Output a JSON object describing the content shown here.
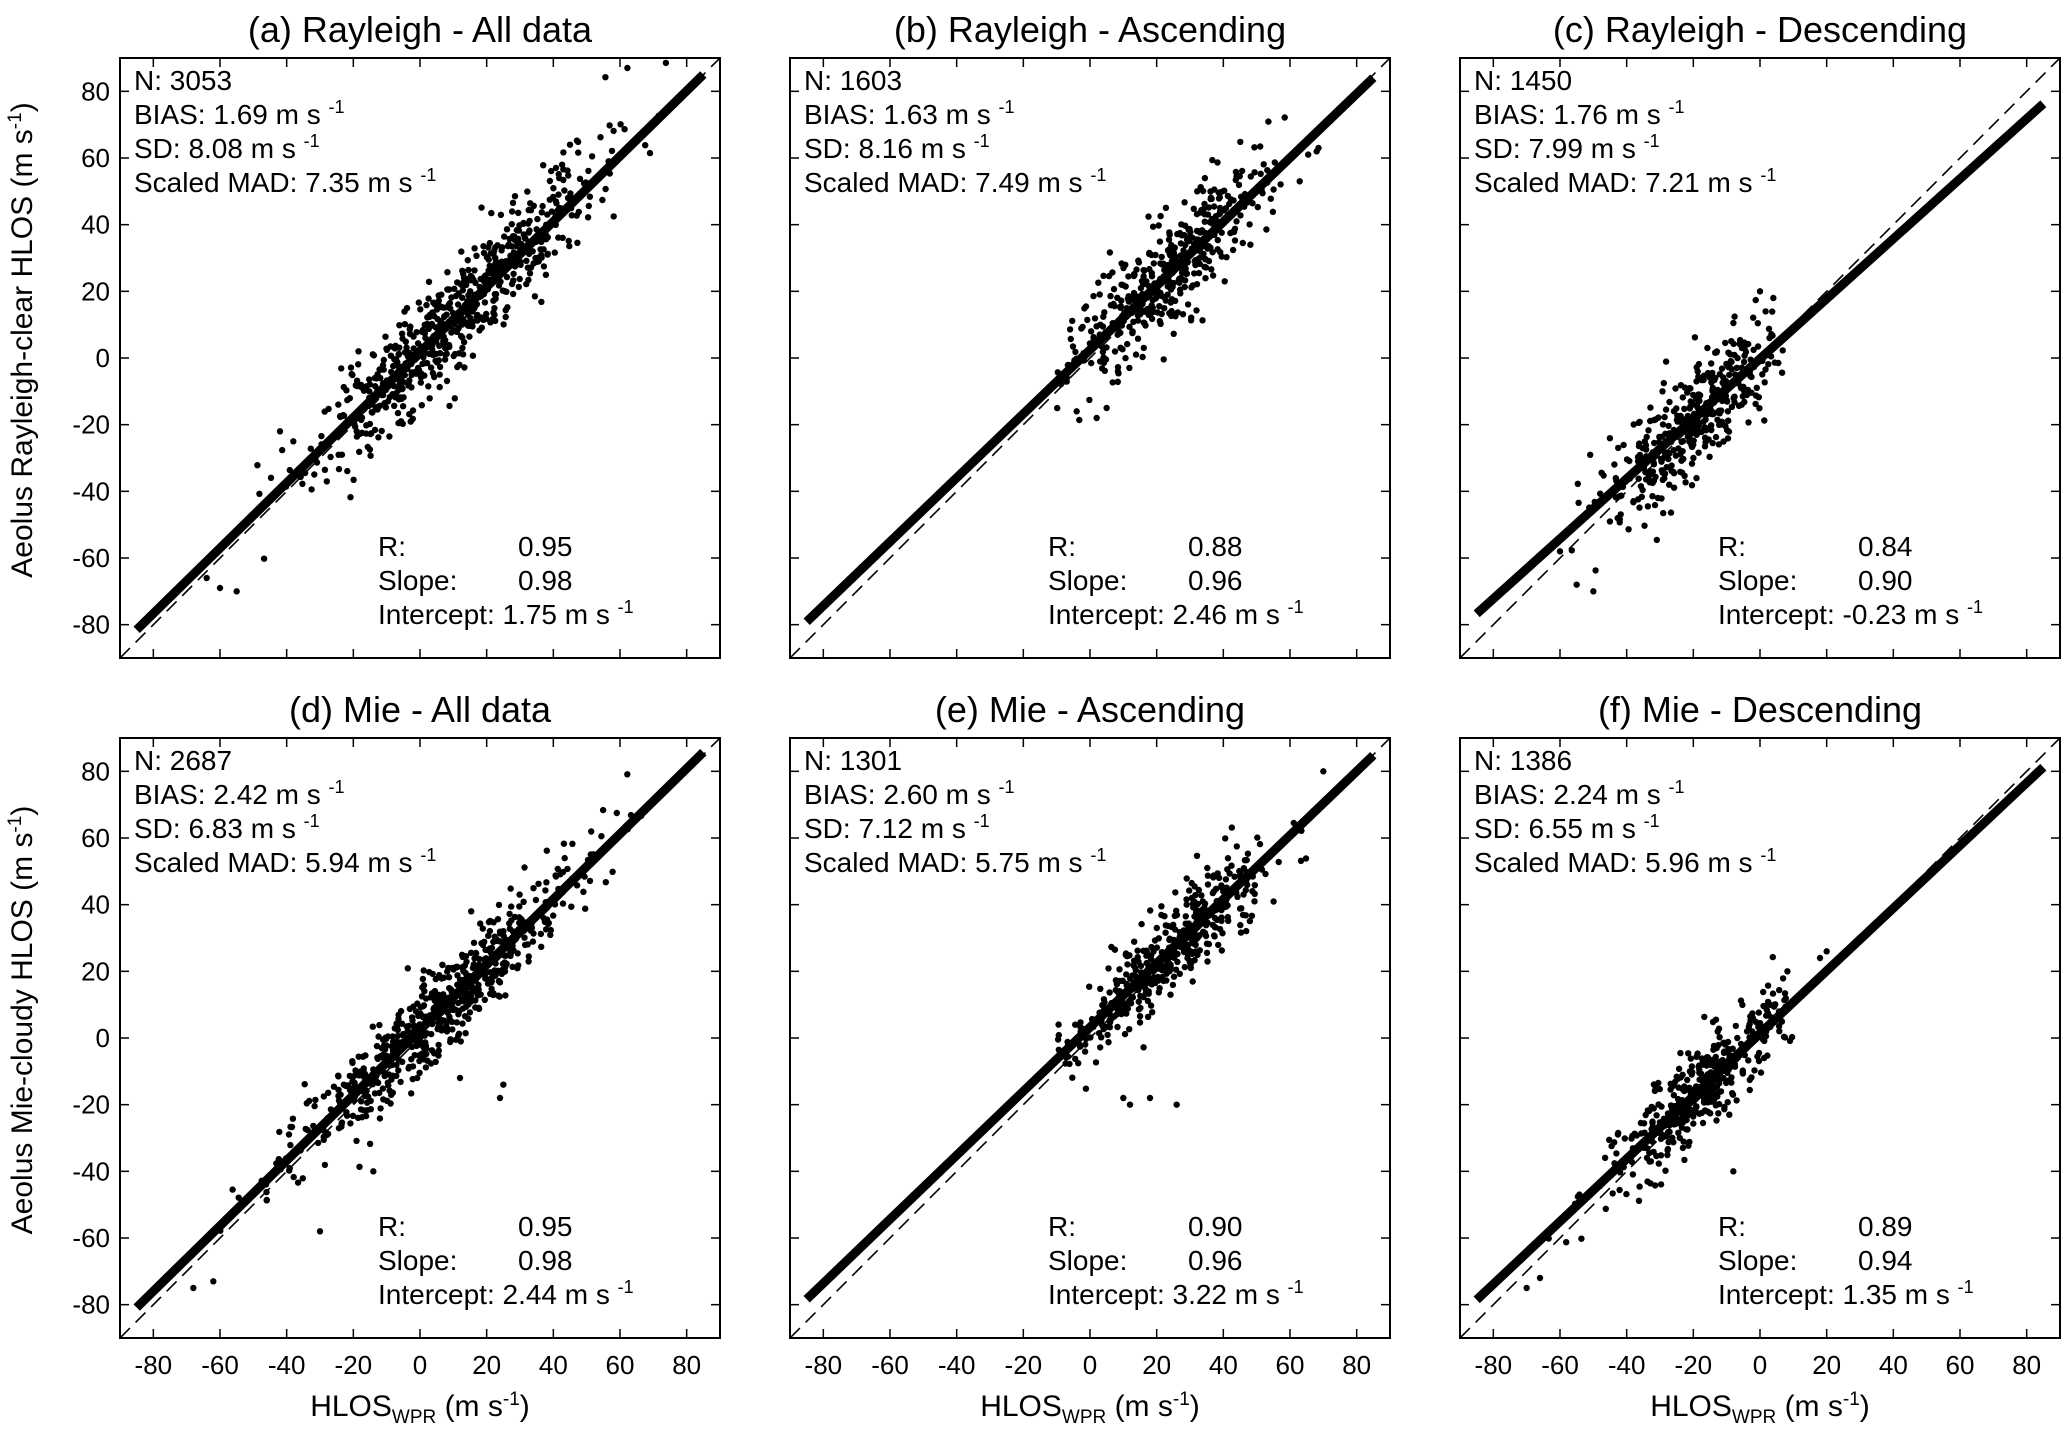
{
  "figure": {
    "ylabel_top": "Aeolus Rayleigh-clear HLOS (m s",
    "ylabel_bottom": "Aeolus Mie-cloudy HLOS (m s",
    "ylabel_sup": "-1",
    "ylabel_close": ")",
    "xlabel_main": "HLOS",
    "xlabel_sub": "WPR",
    "xlabel_unit": " (m s",
    "xlabel_sup": "-1",
    "xlabel_close": ")",
    "stat_unit": "m s",
    "stat_sup": "-1"
  },
  "chart_data": [
    {
      "type": "scatter",
      "title": "(a) Rayleigh - All data",
      "xlim": [
        -90,
        90
      ],
      "ylim": [
        -90,
        90
      ],
      "xticks": [
        -80,
        -60,
        -40,
        -20,
        0,
        20,
        40,
        60,
        80
      ],
      "yticks": [
        -80,
        -60,
        -40,
        -20,
        0,
        20,
        40,
        60,
        80
      ],
      "show_xticklabels": false,
      "show_yticklabels": true,
      "stats": {
        "N": "3053",
        "BIAS": "1.69",
        "SD": "8.08",
        "Scaled MAD": "7.35",
        "R": "0.95",
        "Slope": "0.98",
        "Intercept": "1.75"
      },
      "fit": {
        "slope": 0.98,
        "intercept": 1.75
      },
      "cloud": {
        "n": 650,
        "xmin": -65,
        "xmax": 75,
        "mu": 10,
        "sd": 22,
        "noise": 8.1,
        "seed": 11
      },
      "outliers": [
        [
          -64,
          -66
        ],
        [
          -60,
          -69
        ],
        [
          -55,
          -70
        ],
        [
          -42,
          -22
        ],
        [
          -38,
          -25
        ]
      ]
    },
    {
      "type": "scatter",
      "title": "(b) Rayleigh - Ascending",
      "xlim": [
        -90,
        90
      ],
      "ylim": [
        -90,
        90
      ],
      "xticks": [
        -80,
        -60,
        -40,
        -20,
        0,
        20,
        40,
        60,
        80
      ],
      "yticks": [
        -80,
        -60,
        -40,
        -20,
        0,
        20,
        40,
        60,
        80
      ],
      "show_xticklabels": false,
      "show_yticklabels": false,
      "stats": {
        "N": "1603",
        "BIAS": "1.63",
        "SD": "8.16",
        "Scaled MAD": "7.49",
        "R": "0.88",
        "Slope": "0.96",
        "Intercept": "2.46"
      },
      "fit": {
        "slope": 0.96,
        "intercept": 2.46
      },
      "cloud": {
        "n": 450,
        "xmin": -10,
        "xmax": 72,
        "mu": 22,
        "sd": 15,
        "noise": 8.2,
        "seed": 23
      },
      "outliers": [
        [
          -4,
          -16
        ],
        [
          2,
          -18
        ],
        [
          5,
          -15
        ],
        [
          68,
          62
        ]
      ]
    },
    {
      "type": "scatter",
      "title": "(c) Rayleigh - Descending",
      "xlim": [
        -90,
        90
      ],
      "ylim": [
        -90,
        90
      ],
      "xticks": [
        -80,
        -60,
        -40,
        -20,
        0,
        20,
        40,
        60,
        80
      ],
      "yticks": [
        -80,
        -60,
        -40,
        -20,
        0,
        20,
        40,
        60,
        80
      ],
      "show_xticklabels": false,
      "show_yticklabels": false,
      "stats": {
        "N": "1450",
        "BIAS": "1.76",
        "SD": "7.99",
        "Scaled MAD": "7.21",
        "R": "0.84",
        "Slope": "0.90",
        "Intercept": "-0.23"
      },
      "fit": {
        "slope": 0.9,
        "intercept": -0.23
      },
      "cloud": {
        "n": 420,
        "xmin": -62,
        "xmax": 8,
        "mu": -18,
        "sd": 13,
        "noise": 8.0,
        "seed": 37
      },
      "outliers": [
        [
          -55,
          -68
        ],
        [
          -50,
          -70
        ],
        [
          -60,
          -58
        ],
        [
          0,
          20
        ],
        [
          4,
          18
        ]
      ]
    },
    {
      "type": "scatter",
      "title": "(d) Mie - All data",
      "xlim": [
        -90,
        90
      ],
      "ylim": [
        -90,
        90
      ],
      "xticks": [
        -80,
        -60,
        -40,
        -20,
        0,
        20,
        40,
        60,
        80
      ],
      "yticks": [
        -80,
        -60,
        -40,
        -20,
        0,
        20,
        40,
        60,
        80
      ],
      "show_xticklabels": true,
      "show_yticklabels": true,
      "stats": {
        "N": "2687",
        "BIAS": "2.42",
        "SD": "6.83",
        "Scaled MAD": "5.94",
        "R": "0.95",
        "Slope": "0.98",
        "Intercept": "2.44"
      },
      "fit": {
        "slope": 0.98,
        "intercept": 2.44
      },
      "cloud": {
        "n": 620,
        "xmin": -68,
        "xmax": 70,
        "mu": 5,
        "sd": 22,
        "noise": 6.8,
        "seed": 53
      },
      "outliers": [
        [
          -68,
          -75
        ],
        [
          -62,
          -73
        ],
        [
          -30,
          -58
        ],
        [
          -14,
          -40
        ],
        [
          12,
          -12
        ],
        [
          25,
          -14
        ],
        [
          24,
          -18
        ]
      ]
    },
    {
      "type": "scatter",
      "title": "(e) Mie - Ascending",
      "xlim": [
        -90,
        90
      ],
      "ylim": [
        -90,
        90
      ],
      "xticks": [
        -80,
        -60,
        -40,
        -20,
        0,
        20,
        40,
        60,
        80
      ],
      "yticks": [
        -80,
        -60,
        -40,
        -20,
        0,
        20,
        40,
        60,
        80
      ],
      "show_xticklabels": true,
      "show_yticklabels": false,
      "stats": {
        "N": "1301",
        "BIAS": "2.60",
        "SD": "7.12",
        "Scaled MAD": "5.75",
        "R": "0.90",
        "Slope": "0.96",
        "Intercept": "3.22"
      },
      "fit": {
        "slope": 0.96,
        "intercept": 3.22
      },
      "cloud": {
        "n": 420,
        "xmin": -10,
        "xmax": 72,
        "mu": 22,
        "sd": 15,
        "noise": 7.1,
        "seed": 71
      },
      "outliers": [
        [
          12,
          -20
        ],
        [
          10,
          -18
        ],
        [
          18,
          -18
        ],
        [
          26,
          -20
        ],
        [
          70,
          80
        ]
      ]
    },
    {
      "type": "scatter",
      "title": "(f) Mie - Descending",
      "xlim": [
        -90,
        90
      ],
      "ylim": [
        -90,
        90
      ],
      "xticks": [
        -80,
        -60,
        -40,
        -20,
        0,
        20,
        40,
        60,
        80
      ],
      "yticks": [
        -80,
        -60,
        -40,
        -20,
        0,
        20,
        40,
        60,
        80
      ],
      "show_xticklabels": true,
      "show_yticklabels": false,
      "stats": {
        "N": "1386",
        "BIAS": "2.24",
        "SD": "6.55",
        "Scaled MAD": "5.96",
        "R": "0.89",
        "Slope": "0.94",
        "Intercept": "1.35"
      },
      "fit": {
        "slope": 0.94,
        "intercept": 1.35
      },
      "cloud": {
        "n": 420,
        "xmin": -70,
        "xmax": 10,
        "mu": -18,
        "sd": 14,
        "noise": 6.5,
        "seed": 89
      },
      "outliers": [
        [
          -70,
          -75
        ],
        [
          -66,
          -72
        ],
        [
          -8,
          -40
        ],
        [
          20,
          26
        ],
        [
          18,
          24
        ]
      ]
    }
  ]
}
